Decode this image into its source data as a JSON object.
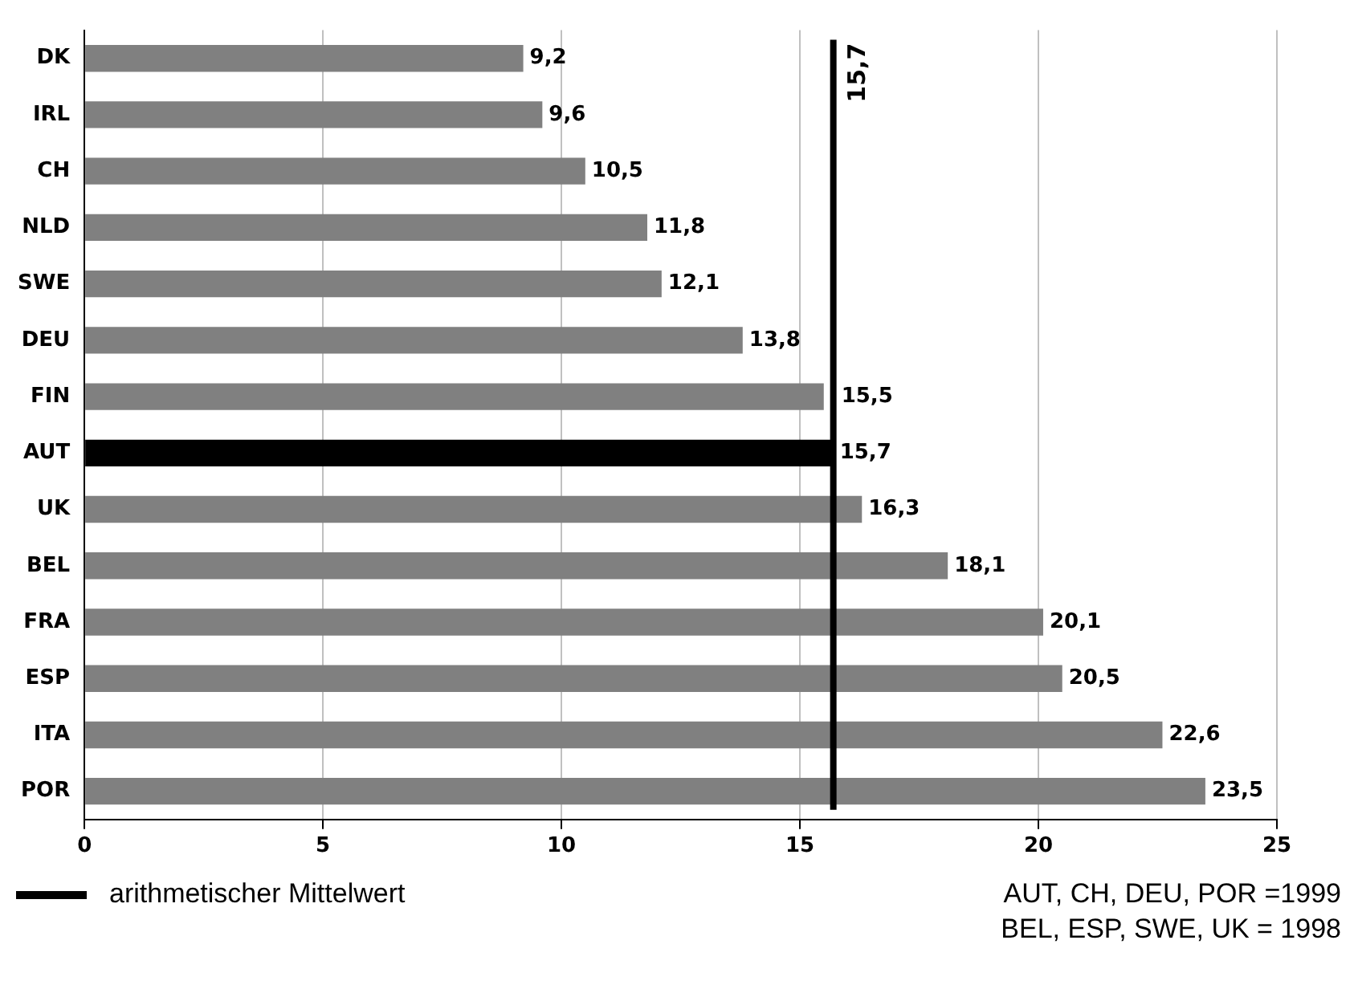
{
  "chart_data": {
    "type": "bar",
    "orientation": "horizontal",
    "categories": [
      "DK",
      "IRL",
      "CH",
      "NLD",
      "SWE",
      "DEU",
      "FIN",
      "AUT",
      "UK",
      "BEL",
      "FRA",
      "ESP",
      "ITA",
      "POR"
    ],
    "values": [
      9.2,
      9.6,
      10.5,
      11.8,
      12.1,
      13.8,
      15.5,
      15.7,
      16.3,
      18.1,
      20.1,
      20.5,
      22.6,
      23.5
    ],
    "colors": [
      "#808080",
      "#808080",
      "#808080",
      "#808080",
      "#808080",
      "#808080",
      "#808080",
      "#000000",
      "#808080",
      "#808080",
      "#808080",
      "#808080",
      "#808080",
      "#808080"
    ],
    "value_labels": [
      "9,2",
      "9,6",
      "10,5",
      "11,8",
      "12,1",
      "13,8",
      "15,5",
      "15,7",
      "16,3",
      "18,1",
      "20,1",
      "20,5",
      "22,6",
      "23,5"
    ],
    "xlim": [
      0,
      25
    ],
    "xticks": [
      0,
      5,
      10,
      15,
      20,
      25
    ],
    "grid": "x",
    "ref_lines": [
      {
        "axis": "x",
        "value": 15.7,
        "label": "15,7",
        "color": "#000000"
      }
    ],
    "annotations": [
      "arithmetischer Mittelwert",
      "AUT, CH, DEU, POR =1999",
      "BEL, ESP, SWE, UK = 1998"
    ]
  }
}
